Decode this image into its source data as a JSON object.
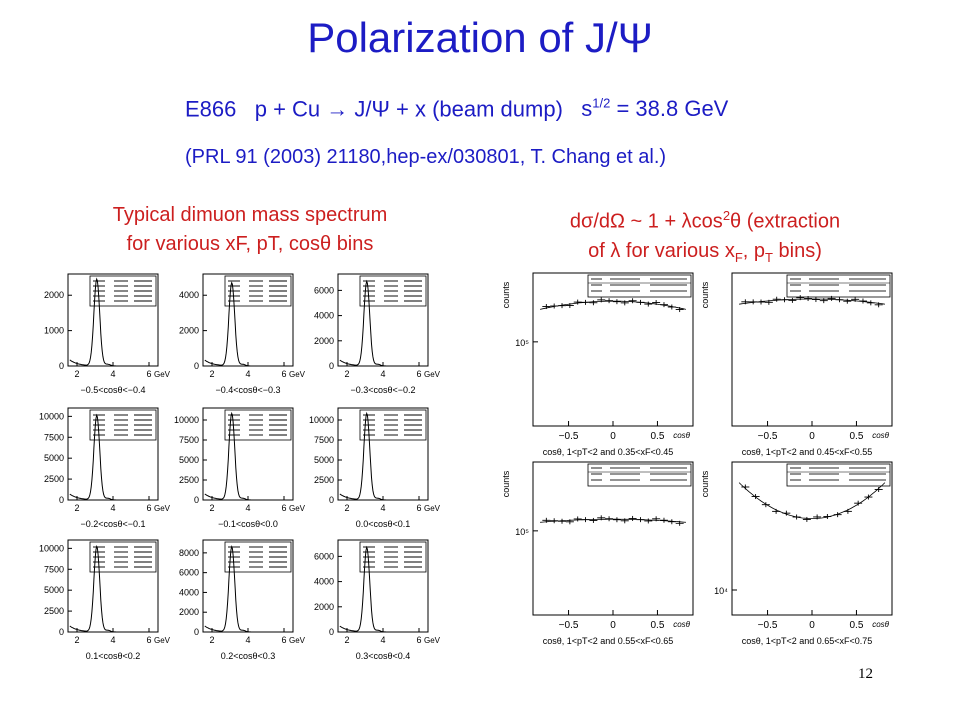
{
  "title": "Polarization of J/Ψ",
  "experiment": {
    "label": "E866",
    "reaction": "p + Cu → J/Ψ + x (beam dump)",
    "energy_base": "s",
    "energy_sup": "1/2",
    "energy_value": " = 38.8 GeV"
  },
  "reference": "(PRL 91 (2003) 21180,hep-ex/030801, T. Chang et al.)",
  "left_caption": {
    "line1": "Typical dimuon mass spectrum",
    "line2": "for various xF, pT, cosθ bins"
  },
  "right_caption": {
    "line1_a": "dσ/dΩ ~ 1 + λcos",
    "line1_sup": "2",
    "line1_b": "θ (extraction",
    "line2_a": "of λ for various x",
    "line2_sub1": "F",
    "line2_b": ", p",
    "line2_sub2": "T",
    "line2_c": " bins)"
  },
  "page_number": "12",
  "colors": {
    "heading": "#1c1cc4",
    "caption": "#cc1f1f",
    "plot": "#000000"
  },
  "chart_data": [
    {
      "type": "line",
      "group": "dimuon mass spectra",
      "panels": [
        {
          "cut": "−0.5<cosθ<−0.4",
          "yticks": [
            "0",
            "1000",
            "2000"
          ],
          "ymax": 2600,
          "peak": 2450,
          "xticks": [
            "2",
            "4",
            "6"
          ],
          "xunit": "GeV"
        },
        {
          "cut": "−0.4<cosθ<−0.3",
          "yticks": [
            "0",
            "2000",
            "4000"
          ],
          "ymax": 5200,
          "peak": 4700,
          "xticks": [
            "2",
            "4",
            "6"
          ],
          "xunit": "GeV"
        },
        {
          "cut": "−0.3<cosθ<−0.2",
          "yticks": [
            "0",
            "2000",
            "4000",
            "6000"
          ],
          "ymax": 7300,
          "peak": 6700,
          "xticks": [
            "2",
            "4",
            "6"
          ],
          "xunit": "GeV"
        },
        {
          "cut": "−0.2<cosθ<−0.1",
          "yticks": [
            "0",
            "2500",
            "5000",
            "7500",
            "10000"
          ],
          "ymax": 11000,
          "peak": 10100,
          "xticks": [
            "2",
            "4",
            "6"
          ],
          "xunit": "GeV"
        },
        {
          "cut": "−0.1<cosθ<0.0",
          "yticks": [
            "0",
            "2500",
            "5000",
            "7500",
            "10000"
          ],
          "ymax": 11500,
          "peak": 10800,
          "xticks": [
            "2",
            "4",
            "6"
          ],
          "xunit": "GeV"
        },
        {
          "cut": "0.0<cosθ<0.1",
          "yticks": [
            "0",
            "2500",
            "5000",
            "7500",
            "10000"
          ],
          "ymax": 11500,
          "peak": 10800,
          "xticks": [
            "2",
            "4",
            "6"
          ],
          "xunit": "GeV"
        },
        {
          "cut": "0.1<cosθ<0.2",
          "yticks": [
            "0",
            "2500",
            "5000",
            "7500",
            "10000"
          ],
          "ymax": 11000,
          "peak": 10200,
          "xticks": [
            "2",
            "4",
            "6"
          ],
          "xunit": "GeV"
        },
        {
          "cut": "0.2<cosθ<0.3",
          "yticks": [
            "0",
            "2000",
            "4000",
            "6000",
            "8000"
          ],
          "ymax": 9300,
          "peak": 8600,
          "xticks": [
            "2",
            "4",
            "6"
          ],
          "xunit": "GeV"
        },
        {
          "cut": "0.3<cosθ<0.4",
          "yticks": [
            "0",
            "2000",
            "4000",
            "6000"
          ],
          "ymax": 7300,
          "peak": 6700,
          "xticks": [
            "2",
            "4",
            "6"
          ],
          "xunit": "GeV"
        }
      ]
    },
    {
      "type": "scatter",
      "group": "cosθ distributions",
      "ylabel": "counts",
      "xlabel": "cosθ",
      "xticks": [
        "−0.5",
        "0",
        "0.5"
      ],
      "panels": [
        {
          "cut": "cosθ, 1<pT<2 and 0.35<xF<0.45",
          "ytick": "10⁵",
          "level": 0.8,
          "curv": 0.08
        },
        {
          "cut": "cosθ, 1<pT<2 and 0.45<xF<0.55",
          "ytick": "",
          "level": 0.82,
          "curv": 0.05
        },
        {
          "cut": "cosθ, 1<pT<2 and 0.55<xF<0.65",
          "ytick": "10⁵",
          "level": 0.62,
          "curv": 0.03
        },
        {
          "cut": "cosθ, 1<pT<2 and 0.65<xF<0.75",
          "ytick": "10⁴",
          "level": 0.7,
          "curv": -0.35
        }
      ]
    }
  ]
}
